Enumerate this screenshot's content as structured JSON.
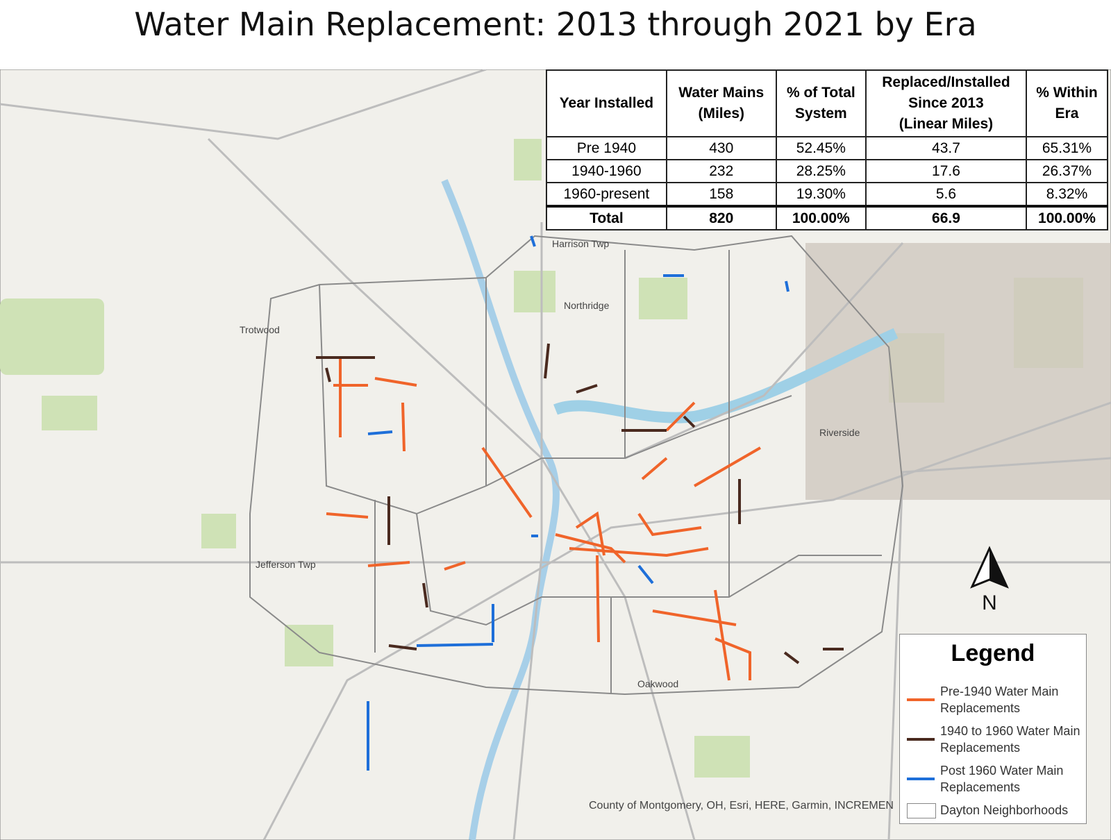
{
  "title": "Water Main Replacement: 2013 through 2021 by Era",
  "table": {
    "header": [
      "Year Installed",
      "Water Mains\n(Miles)",
      "% of Total\nSystem",
      "Replaced/Installed\nSince 2013\n(Linear Miles)",
      "% Within\nEra"
    ],
    "rows": [
      [
        "Pre 1940",
        "430",
        "52.45%",
        "43.7",
        "65.31%"
      ],
      [
        "1940-1960",
        "232",
        "28.25%",
        "17.6",
        "26.37%"
      ],
      [
        "1960-present",
        "158",
        "19.30%",
        "5.6",
        "8.32%"
      ]
    ],
    "total": [
      "Total",
      "820",
      "100.00%",
      "66.9",
      "100.00%"
    ]
  },
  "legend": {
    "title": "Legend",
    "items": [
      {
        "label": "Pre-1940 Water Main Replacements",
        "color": "#f0642a"
      },
      {
        "label": "1940 to 1960 Water Main Replacements",
        "color": "#4a2a1f"
      },
      {
        "label": "Post 1960 Water Main Replacements",
        "color": "#1e6fd9"
      },
      {
        "label": "Dayton Neighborhoods",
        "color": "#ffffff"
      }
    ]
  },
  "map": {
    "places": [
      "Trotwood",
      "Northridge",
      "Riverside",
      "Oakwood",
      "Jefferson Twp",
      "Harrison Twp"
    ],
    "north": "N",
    "attribution": "County of Montgomery, OH, Esri, HERE, Garmin, INCREMEN"
  }
}
